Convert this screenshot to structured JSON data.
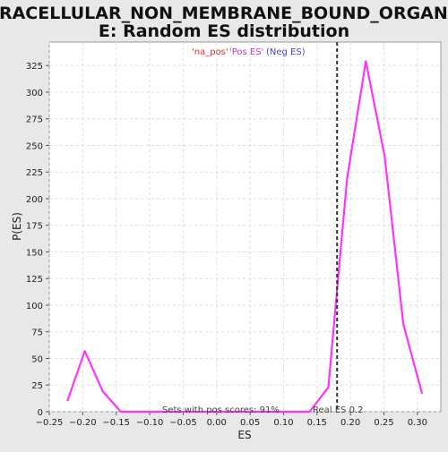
{
  "chart_data": {
    "type": "line",
    "title_lines": [
      "INTRACELLULAR_NON_MEMBRANE_BOUND_ORGANELL",
      "E: Random ES distribution"
    ],
    "xlabel": "ES",
    "ylabel": "P(ES)",
    "xlim": [
      -0.25,
      0.335
    ],
    "ylim": [
      0,
      347
    ],
    "xticks": [
      -0.25,
      -0.2,
      -0.15,
      -0.1,
      -0.05,
      0.0,
      0.05,
      0.1,
      0.15,
      0.2,
      0.25,
      0.3
    ],
    "xtick_labels": [
      "−0.25",
      "−0.20",
      "−0.15",
      "−0.10",
      "−0.05",
      "0.00",
      "0.05",
      "0.10",
      "0.15",
      "0.20",
      "0.25",
      "0.30"
    ],
    "yticks": [
      0,
      25,
      50,
      75,
      100,
      125,
      150,
      175,
      200,
      225,
      250,
      275,
      300,
      325
    ],
    "grid": true,
    "series": [
      {
        "color": "#ff33ff",
        "x": [
          -0.223,
          -0.197,
          -0.17,
          -0.143,
          -0.116,
          -0.089,
          -0.062,
          -0.035,
          -0.008,
          0.019,
          0.046,
          0.073,
          0.1,
          0.127,
          0.139,
          0.167,
          0.181,
          0.195,
          0.223,
          0.251,
          0.279,
          0.307
        ],
        "y": [
          10,
          57,
          19,
          0,
          0,
          0,
          0,
          0,
          0,
          0,
          0,
          0,
          0,
          0,
          0,
          23,
          122,
          219,
          329,
          240,
          82,
          17
        ]
      }
    ],
    "real_es": 0.18,
    "legend": {
      "na_label": "'na_pos'",
      "na_color": "#e03030",
      "pos_label": "'Pos ES'",
      "pos_color": "#cc33cc",
      "neg_label": "'Neg ES'",
      "neg_color": "#4444dd",
      "neg_text": "(Neg ES)"
    },
    "annotations": {
      "pos_scores": "Sets with pos scores: 91%",
      "real_es": "Real ES 0.2"
    }
  }
}
